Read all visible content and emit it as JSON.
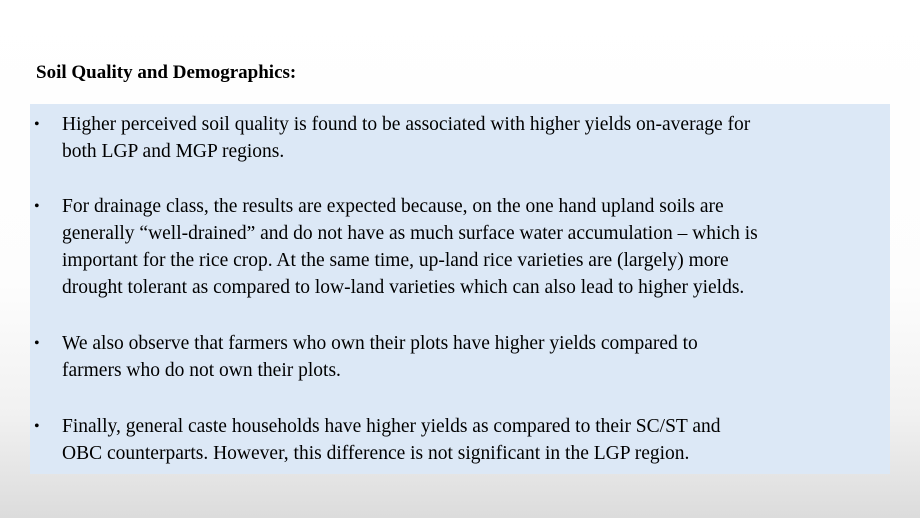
{
  "slide": {
    "title": "Soil Quality and Demographics:",
    "bullets": [
      {
        "lines": [
          "Higher perceived soil quality is found to be associated with higher yields on-average for",
          "both LGP and MGP regions."
        ]
      },
      {
        "lines": [
          "For drainage class, the results are expected because, on the one hand upland soils are",
          "generally “well-drained” and do not have as much surface water accumulation – which is",
          "important for the rice crop. At the same time, up-land rice varieties are (largely) more",
          "drought tolerant as compared to low-land varieties which can also lead to higher yields."
        ]
      },
      {
        "lines": [
          "We also observe that farmers who own their plots have higher yields compared to",
          "farmers who do not own their plots."
        ]
      },
      {
        "lines": [
          "Finally, general caste households have higher yields as compared to their SC/ST and",
          "OBC  counterparts. However, this difference is not significant in the LGP region."
        ]
      }
    ],
    "bullet_symbol": "•",
    "colors": {
      "box_background": "#dce8f6",
      "text": "#000000"
    }
  }
}
